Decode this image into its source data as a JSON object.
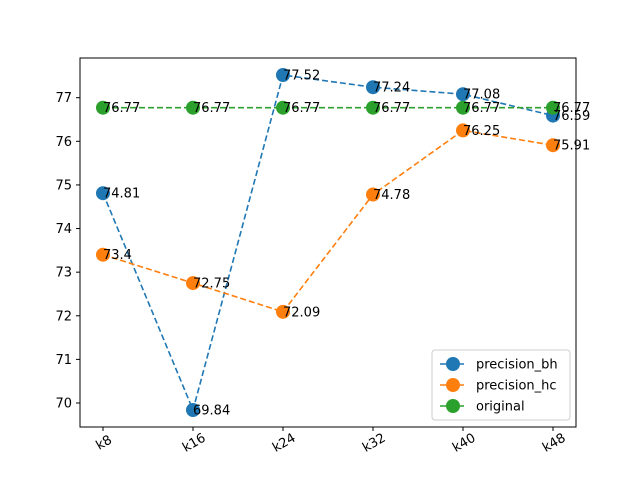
{
  "chart_data": {
    "type": "line",
    "categories": [
      "k8",
      "k16",
      "k24",
      "k32",
      "k40",
      "k48"
    ],
    "series": [
      {
        "name": "precision_bh",
        "color": "#1f77b4",
        "values": [
          74.81,
          69.84,
          77.52,
          77.24,
          77.08,
          76.59
        ]
      },
      {
        "name": "precision_hc",
        "color": "#ff7f0e",
        "values": [
          73.4,
          72.75,
          72.09,
          74.78,
          76.25,
          75.91
        ]
      },
      {
        "name": "original",
        "color": "#2ca02c",
        "values": [
          76.77,
          76.77,
          76.77,
          76.77,
          76.77,
          76.77
        ]
      }
    ],
    "yticks": [
      70,
      71,
      72,
      73,
      74,
      75,
      76,
      77
    ],
    "ylim": [
      69.45,
      77.91
    ],
    "line_style": "dashed",
    "marker": "circle",
    "legend_position": "lower-right",
    "xtick_rotation_deg": 30,
    "grid": false
  }
}
